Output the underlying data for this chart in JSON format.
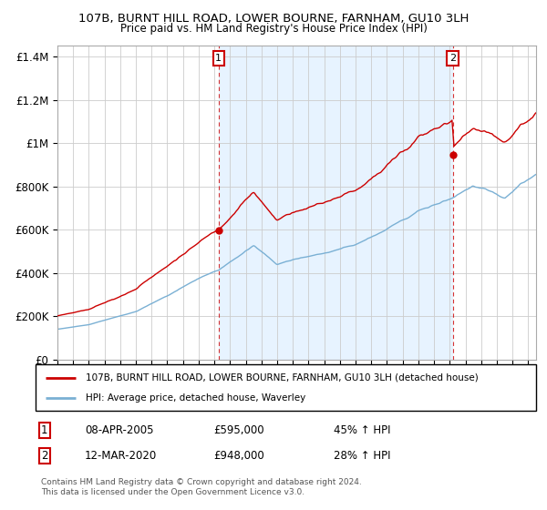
{
  "title": "107B, BURNT HILL ROAD, LOWER BOURNE, FARNHAM, GU10 3LH",
  "subtitle": "Price paid vs. HM Land Registry's House Price Index (HPI)",
  "legend_property": "107B, BURNT HILL ROAD, LOWER BOURNE, FARNHAM, GU10 3LH (detached house)",
  "legend_hpi": "HPI: Average price, detached house, Waverley",
  "sale1_date": "08-APR-2005",
  "sale1_price": "£595,000",
  "sale1_hpi": "45% ↑ HPI",
  "sale1_year": 2005.27,
  "sale1_value": 595000,
  "sale2_date": "12-MAR-2020",
  "sale2_price": "£948,000",
  "sale2_hpi": "28% ↑ HPI",
  "sale2_year": 2020.2,
  "sale2_value": 948000,
  "property_color": "#cc0000",
  "hpi_color": "#7ab0d4",
  "vline_color": "#cc0000",
  "shaded_color": "#ddeeff",
  "ylim": [
    0,
    1450000
  ],
  "xlim_start": 1995.0,
  "xlim_end": 2025.5,
  "footer": "Contains HM Land Registry data © Crown copyright and database right 2024.\nThis data is licensed under the Open Government Licence v3.0.",
  "background_color": "#ffffff",
  "grid_color": "#cccccc",
  "yticks": [
    0,
    200000,
    400000,
    600000,
    800000,
    1000000,
    1200000,
    1400000
  ],
  "ytick_labels": [
    "£0",
    "£200K",
    "£400K",
    "£600K",
    "£800K",
    "£1M",
    "£1.2M",
    "£1.4M"
  ]
}
